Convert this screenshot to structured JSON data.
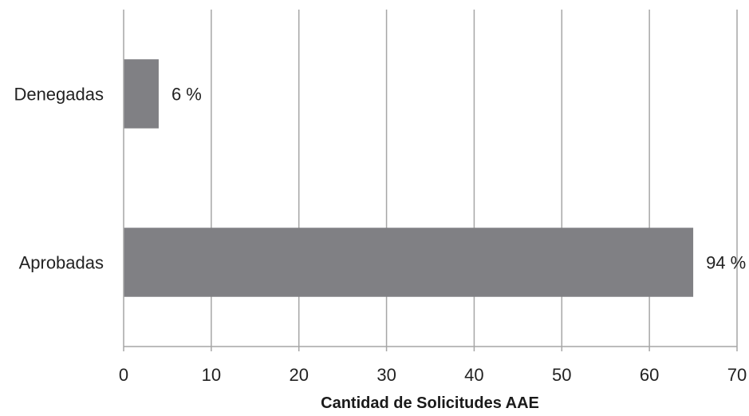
{
  "chart_data": {
    "type": "bar",
    "orientation": "horizontal",
    "categories": [
      "Denegadas",
      "Aprobadas"
    ],
    "values": [
      4,
      65
    ],
    "data_labels": [
      "6 %",
      "94 %"
    ],
    "xlabel": "Cantidad de Solicitudes AAE",
    "ylabel": "",
    "xlim": [
      0,
      70
    ],
    "xticks": [
      0,
      10,
      20,
      30,
      40,
      50,
      60,
      70
    ],
    "grid": "vertical",
    "legend": "none",
    "colors": {
      "bar": "#808084",
      "grid": "#a6a6a6",
      "axis": "#a6a6a6"
    }
  }
}
